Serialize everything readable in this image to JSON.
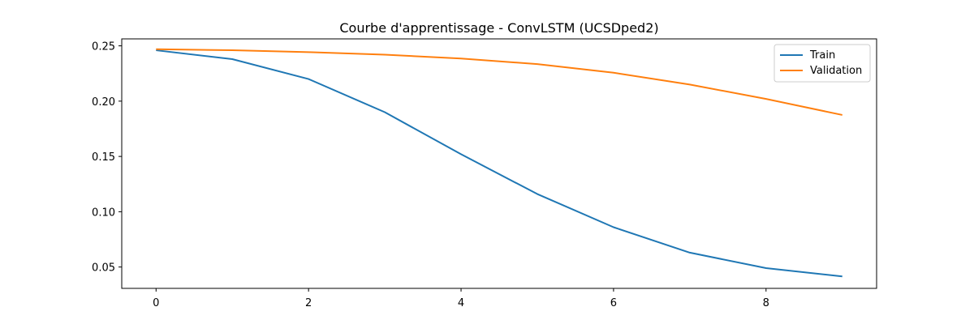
{
  "chart_data": {
    "type": "line",
    "title": "Courbe d'apprentissage - ConvLSTM (UCSDped2)",
    "xlabel": "",
    "ylabel": "",
    "x": [
      0,
      1,
      2,
      3,
      4,
      5,
      6,
      7,
      8,
      9
    ],
    "xlim": [
      -0.45,
      9.45
    ],
    "ylim": [
      0.0307,
      0.2563
    ],
    "xticks": [
      0,
      2,
      4,
      6,
      8
    ],
    "xtick_labels": [
      "0",
      "2",
      "4",
      "6",
      "8"
    ],
    "yticks": [
      0.05,
      0.1,
      0.15,
      0.2,
      0.25
    ],
    "ytick_labels": [
      "0.05",
      "0.10",
      "0.15",
      "0.20",
      "0.25"
    ],
    "grid": false,
    "legend_position": "top-right",
    "series": [
      {
        "name": "Train",
        "color": "#1f77b4",
        "values": [
          0.246,
          0.238,
          0.22,
          0.19,
          0.152,
          0.116,
          0.086,
          0.063,
          0.049,
          0.0415
        ]
      },
      {
        "name": "Validation",
        "color": "#ff7f0e",
        "values": [
          0.247,
          0.246,
          0.2443,
          0.242,
          0.2385,
          0.2335,
          0.2257,
          0.215,
          0.202,
          0.1875
        ]
      }
    ]
  }
}
